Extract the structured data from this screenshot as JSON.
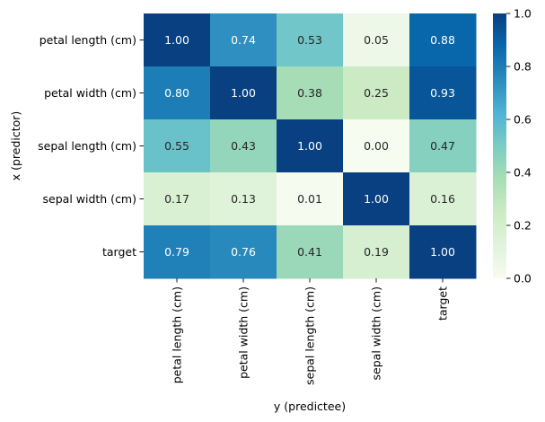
{
  "chart_data": {
    "type": "heatmap",
    "xlabel": "y (predictee)",
    "ylabel": "x (predictor)",
    "x_categories": [
      "petal length (cm)",
      "petal width (cm)",
      "sepal length (cm)",
      "sepal width (cm)",
      "target"
    ],
    "y_categories": [
      "petal length (cm)",
      "petal width (cm)",
      "sepal length (cm)",
      "sepal width (cm)",
      "target"
    ],
    "values": [
      [
        1.0,
        0.74,
        0.53,
        0.05,
        0.88
      ],
      [
        0.8,
        1.0,
        0.38,
        0.25,
        0.93
      ],
      [
        0.55,
        0.43,
        1.0,
        0.0,
        0.47
      ],
      [
        0.17,
        0.13,
        0.01,
        1.0,
        0.16
      ],
      [
        0.79,
        0.76,
        0.41,
        0.19,
        1.0
      ]
    ],
    "value_format": "0.00",
    "colorbar": {
      "range": [
        0.0,
        1.0
      ],
      "ticks": [
        0.0,
        0.2,
        0.4,
        0.6,
        0.8,
        1.0
      ],
      "tick_labels": [
        "0.0",
        "0.2",
        "0.4",
        "0.6",
        "0.8",
        "1.0"
      ],
      "colormap": "GnBu",
      "stops": [
        "#f7fcf0",
        "#e0f3db",
        "#ccebc5",
        "#a8ddb5",
        "#7bccc4",
        "#4eb3d3",
        "#2b8cbe",
        "#0868ac",
        "#084081"
      ]
    },
    "grid": false,
    "legend": "colorbar-right"
  }
}
